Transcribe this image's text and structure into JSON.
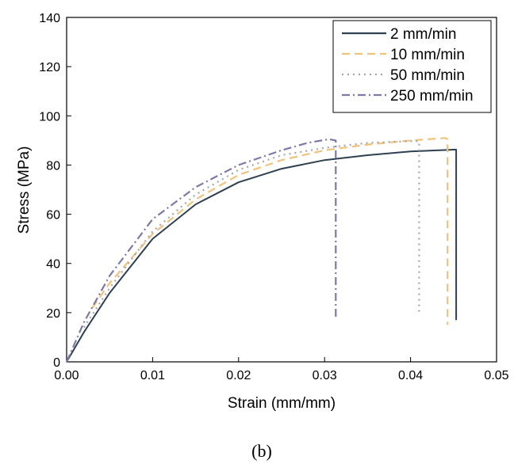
{
  "chart_data": {
    "type": "line",
    "xlabel": "Strain (mm/mm)",
    "ylabel": "Stress (MPa)",
    "xlim": [
      0,
      0.05
    ],
    "ylim": [
      0,
      140
    ],
    "xticks": [
      "0.00",
      "0.01",
      "0.02",
      "0.03",
      "0.04",
      "0.05"
    ],
    "yticks": [
      "0",
      "20",
      "40",
      "60",
      "80",
      "100",
      "120",
      "140"
    ],
    "grid": false,
    "legend_position": "top-right",
    "series": [
      {
        "name": "2 mm/min",
        "color": "#2f4050",
        "style": "solid",
        "x": [
          0,
          0.002,
          0.005,
          0.01,
          0.015,
          0.02,
          0.025,
          0.03,
          0.035,
          0.04,
          0.0445,
          0.0453,
          0.0453
        ],
        "y": [
          0,
          12,
          28,
          50,
          64,
          73,
          78.5,
          82,
          84,
          85.5,
          86.2,
          86.3,
          17
        ]
      },
      {
        "name": "10 mm/min",
        "color": "#f0c27a",
        "style": "dashed",
        "x": [
          0.003,
          0.005,
          0.01,
          0.015,
          0.02,
          0.025,
          0.03,
          0.035,
          0.04,
          0.044,
          0.0443,
          0.0443
        ],
        "y": [
          22,
          32,
          52,
          66,
          76,
          82,
          86,
          88.3,
          90,
          91,
          90.5,
          15
        ]
      },
      {
        "name": "50 mm/min",
        "color": "#a6a6a6",
        "style": "dotted",
        "x": [
          0.002,
          0.005,
          0.01,
          0.015,
          0.02,
          0.025,
          0.03,
          0.035,
          0.0405,
          0.041,
          0.041
        ],
        "y": [
          14,
          30,
          53,
          68,
          78,
          84,
          87,
          89,
          89.8,
          89.6,
          19
        ]
      },
      {
        "name": "250 mm/min",
        "color": "#7e78a8",
        "style": "dashdot",
        "x": [
          0,
          0.002,
          0.005,
          0.01,
          0.015,
          0.02,
          0.025,
          0.028,
          0.0305,
          0.0313,
          0.0313
        ],
        "y": [
          0,
          16,
          35,
          58,
          71,
          80,
          86,
          89,
          90.5,
          90,
          18
        ]
      }
    ]
  },
  "caption": "(b)"
}
